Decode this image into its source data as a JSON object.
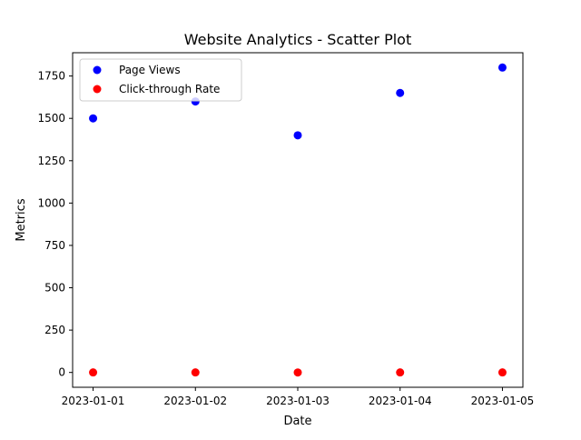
{
  "chart_data": {
    "type": "scatter",
    "title": "Website Analytics - Scatter Plot",
    "xlabel": "Date",
    "ylabel": "Metrics",
    "x": [
      "2023-01-01",
      "2023-01-02",
      "2023-01-03",
      "2023-01-04",
      "2023-01-05"
    ],
    "ylim": [
      -87.5,
      1887.5
    ],
    "yticks": [
      0,
      250,
      500,
      750,
      1000,
      1250,
      1500,
      1750
    ],
    "yticklabels": [
      "0",
      "250",
      "500",
      "750",
      "1000",
      "1250",
      "1500",
      "1750"
    ],
    "grid": false,
    "legend": "top-left",
    "series": [
      {
        "name": "Page Views",
        "color": "#0000ff",
        "values": [
          1500,
          1600,
          1400,
          1650,
          1800
        ]
      },
      {
        "name": "Click-through Rate",
        "color": "#ff0000",
        "values": [
          0.05,
          0.06,
          0.04,
          0.07,
          0.05
        ]
      }
    ]
  }
}
